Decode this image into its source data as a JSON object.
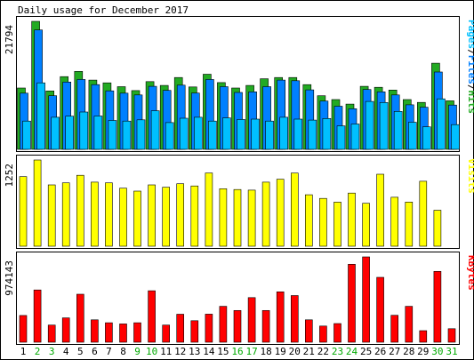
{
  "chart_data": [
    {
      "type": "bar",
      "title": "Daily usage for December 2017",
      "days": [
        "1",
        "2",
        "3",
        "4",
        "5",
        "6",
        "7",
        "8",
        "9",
        "10",
        "11",
        "12",
        "13",
        "14",
        "15",
        "16",
        "17",
        "18",
        "19",
        "20",
        "21",
        "22",
        "23",
        "24",
        "25",
        "26",
        "27",
        "28",
        "29",
        "30",
        "31"
      ],
      "weekend_days": [
        "2",
        "3",
        "9",
        "10",
        "16",
        "17",
        "23",
        "24",
        "30",
        "31"
      ],
      "panels": [
        {
          "id": "hits-files-pages",
          "max_label": "21794",
          "side_label_parts": [
            "Pages",
            "/",
            "Files",
            "/",
            "Hits"
          ],
          "ylim": [
            0,
            21794
          ],
          "series": [
            {
              "name": "Hits",
              "color": "#22aa22",
              "values": [
                10450,
                21794,
                9950,
                12380,
                13270,
                11790,
                11320,
                10670,
                10000,
                11530,
                10880,
                12230,
                10630,
                12790,
                11370,
                10450,
                10880,
                12010,
                12230,
                12230,
                11020,
                9120,
                8480,
                7710,
                10730,
                10560,
                10100,
                8480,
                7990,
                14660,
                8270
              ]
            },
            {
              "name": "Files",
              "color": "#0080ff",
              "values": [
                9560,
                20330,
                9120,
                11460,
                11890,
                11020,
                9960,
                9560,
                9260,
                10730,
                10040,
                10930,
                9580,
                11900,
                10670,
                9690,
                9790,
                10670,
                11790,
                11680,
                10130,
                8220,
                7340,
                6920,
                10180,
                9790,
                9260,
                7590,
                7180,
                13170,
                7540
              ]
            },
            {
              "name": "Pages",
              "color": "#00c0ff",
              "values": [
                4810,
                11320,
                5470,
                5640,
                6350,
                5680,
                4920,
                4810,
                5030,
                6570,
                4550,
                5300,
                5470,
                4810,
                5360,
                5080,
                5140,
                4810,
                5470,
                5140,
                4980,
                5250,
                3990,
                4320,
                8160,
                7980,
                6470,
                4610,
                3830,
                8590,
                4210
              ]
            }
          ]
        },
        {
          "id": "visits",
          "max_label": "1252",
          "side_label_parts": [
            "Visits"
          ],
          "ylim": [
            0,
            1252
          ],
          "series": [
            {
              "name": "Visits",
              "color": "#ffff00",
              "values": [
                1010,
                1252,
                890,
                920,
                1030,
                931,
                920,
                843,
                800,
                891,
                857,
                907,
                875,
                1064,
                835,
                824,
                814,
                931,
                973,
                1062,
                747,
                695,
                640,
                772,
                624,
                1045,
                711,
                642,
                943,
                523,
                0
              ]
            }
          ]
        },
        {
          "id": "kbytes",
          "max_label": "974143",
          "side_label_parts": [
            "KBytes"
          ],
          "ylim": [
            0,
            974143
          ],
          "series": [
            {
              "name": "KBytes",
              "color": "#ff0000",
              "values": [
                305900,
                597000,
                196000,
                278300,
                548200,
                256000,
                222200,
                209300,
                222200,
                587300,
                196000,
                319900,
                245700,
                321000,
                409500,
                362700,
                509500,
                362700,
                575500,
                532500,
                256000,
                185000,
                213000,
                889800,
                974143,
                741000,
                307000,
                409500,
                131600,
                808300,
                154700
              ]
            }
          ]
        }
      ]
    }
  ]
}
